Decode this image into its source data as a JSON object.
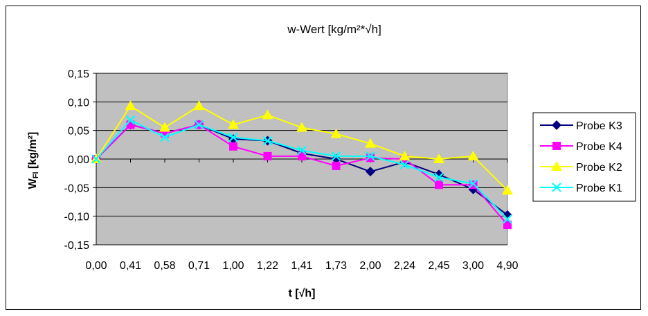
{
  "chart_data": {
    "type": "line",
    "title": "w-Wert [kg/m²*√h]",
    "xlabel": "t [√h]",
    "ylabel_main": "W",
    "ylabel_sub": "Fl",
    "ylabel_rest": " [kg/m²]",
    "categories": [
      "0,00",
      "0,41",
      "0,58",
      "0,71",
      "1,00",
      "1,22",
      "1,41",
      "1,73",
      "2,00",
      "2,24",
      "2,45",
      "3,00",
      "4,90"
    ],
    "y_ticks": [
      "0,15",
      "0,10",
      "0,05",
      "0,00",
      "-0,05",
      "-0,10",
      "-0,15"
    ],
    "ylim": [
      -0.15,
      0.15
    ],
    "grid": true,
    "legend_position": "right",
    "series": [
      {
        "name": "Probe K3",
        "color": "#000080",
        "marker": "diamond",
        "values": [
          0.0,
          0.06,
          0.045,
          0.06,
          0.035,
          0.032,
          0.01,
          0.0,
          -0.022,
          -0.005,
          -0.027,
          -0.053,
          -0.098
        ]
      },
      {
        "name": "Probe K4",
        "color": "#ff00ff",
        "marker": "square",
        "values": [
          0.0,
          0.06,
          0.045,
          0.06,
          0.022,
          0.005,
          0.005,
          -0.012,
          0.002,
          0.0,
          -0.045,
          -0.045,
          -0.115
        ]
      },
      {
        "name": "Probe K2",
        "color": "#ffff00",
        "marker": "triangle",
        "values": [
          0.0,
          0.093,
          0.055,
          0.093,
          0.06,
          0.077,
          0.055,
          0.044,
          0.027,
          0.005,
          0.0,
          0.005,
          -0.055
        ]
      },
      {
        "name": "Probe K1",
        "color": "#00ffff",
        "marker": "x",
        "values": [
          0.0,
          0.068,
          0.038,
          0.06,
          0.038,
          0.032,
          0.015,
          0.005,
          0.005,
          -0.01,
          -0.032,
          -0.043,
          -0.105
        ]
      }
    ]
  }
}
